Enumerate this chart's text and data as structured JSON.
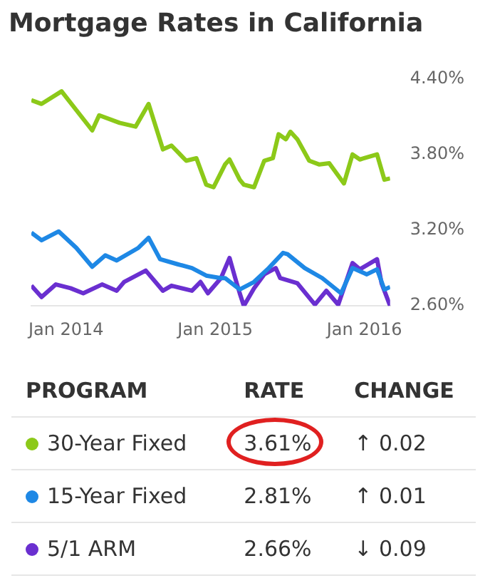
{
  "chart_data": {
    "type": "line",
    "title": "Mortgage Rates in California",
    "xlim": [
      "2013-10-08",
      "2016-03-04"
    ],
    "ylim": [
      2.6,
      4.4
    ],
    "xticks": [
      {
        "value": "2014-01-01",
        "label": "Jan 2014"
      },
      {
        "value": "2015-01-01",
        "label": "Jan 2015"
      },
      {
        "value": "2016-01-01",
        "label": "Jan 2016"
      }
    ],
    "yticks": [
      {
        "value": 2.6,
        "label": "2.60%"
      },
      {
        "value": 3.2,
        "label": "3.20%"
      },
      {
        "value": 3.8,
        "label": "3.80%"
      },
      {
        "value": 4.4,
        "label": "4.40%"
      }
    ],
    "grid": false,
    "legend": "bottom",
    "marker": "none",
    "line_style": "solid",
    "series": [
      {
        "name": "30-Year Fixed",
        "color": "#8cc919",
        "x": [
          "2013-10-08",
          "2013-11-02",
          "2013-12-21",
          "2014-03-06",
          "2014-03-23",
          "2014-05-12",
          "2014-06-20",
          "2014-07-22",
          "2014-08-26",
          "2014-09-16",
          "2014-10-22",
          "2014-11-16",
          "2014-12-10",
          "2014-12-28",
          "2015-01-25",
          "2015-02-05",
          "2015-03-02",
          "2015-03-12",
          "2015-04-06",
          "2015-05-01",
          "2015-05-22",
          "2015-06-05",
          "2015-06-23",
          "2015-07-04",
          "2015-07-21",
          "2015-08-19",
          "2015-09-13",
          "2015-10-07",
          "2015-11-12",
          "2015-12-03",
          "2015-12-21",
          "2016-02-01",
          "2016-02-19",
          "2016-03-04"
        ],
        "values": [
          4.23,
          4.2,
          4.3,
          3.99,
          4.11,
          4.05,
          4.02,
          4.2,
          3.84,
          3.87,
          3.75,
          3.77,
          3.56,
          3.54,
          3.72,
          3.76,
          3.6,
          3.56,
          3.54,
          3.75,
          3.77,
          3.96,
          3.92,
          3.98,
          3.92,
          3.75,
          3.72,
          3.73,
          3.57,
          3.8,
          3.76,
          3.8,
          3.6,
          3.61
        ]
      },
      {
        "name": "15-Year Fixed",
        "color": "#1e88e5",
        "x": [
          "2013-10-08",
          "2013-11-02",
          "2013-12-14",
          "2014-01-26",
          "2014-03-06",
          "2014-04-07",
          "2014-05-05",
          "2014-06-27",
          "2014-07-22",
          "2014-08-19",
          "2014-10-01",
          "2014-11-05",
          "2014-12-10",
          "2015-01-15",
          "2015-01-25",
          "2015-03-02",
          "2015-04-06",
          "2015-05-12",
          "2015-06-16",
          "2015-06-27",
          "2015-08-08",
          "2015-09-20",
          "2015-11-05",
          "2015-12-03",
          "2016-01-07",
          "2016-02-01",
          "2016-02-19",
          "2016-03-04"
        ],
        "values": [
          3.18,
          3.12,
          3.19,
          3.06,
          2.91,
          3.0,
          2.96,
          3.06,
          3.14,
          2.97,
          2.93,
          2.9,
          2.84,
          2.82,
          2.82,
          2.73,
          2.79,
          2.9,
          3.02,
          3.01,
          2.9,
          2.82,
          2.7,
          2.9,
          2.85,
          2.89,
          2.73,
          2.75
        ]
      },
      {
        "name": "5/1 ARM",
        "color": "#6a2fd0",
        "x": [
          "2013-10-08",
          "2013-11-02",
          "2013-12-07",
          "2014-01-12",
          "2014-02-12",
          "2014-03-30",
          "2014-05-05",
          "2014-05-23",
          "2014-07-15",
          "2014-08-26",
          "2014-09-16",
          "2014-11-05",
          "2014-11-26",
          "2014-12-14",
          "2015-01-15",
          "2015-02-05",
          "2015-02-19",
          "2015-03-02",
          "2015-03-12",
          "2015-04-06",
          "2015-05-01",
          "2015-05-29",
          "2015-06-09",
          "2015-07-21",
          "2015-09-02",
          "2015-09-30",
          "2015-10-29",
          "2015-12-03",
          "2015-12-21",
          "2016-02-01",
          "2016-02-12",
          "2016-03-04"
        ],
        "values": [
          2.76,
          2.67,
          2.77,
          2.74,
          2.7,
          2.77,
          2.72,
          2.79,
          2.88,
          2.72,
          2.76,
          2.72,
          2.79,
          2.7,
          2.82,
          2.98,
          2.82,
          2.7,
          2.6,
          2.74,
          2.85,
          2.9,
          2.82,
          2.78,
          2.61,
          2.72,
          2.61,
          2.94,
          2.89,
          2.97,
          2.78,
          2.6
        ]
      }
    ],
    "annotations": [
      "PROGRAM",
      "RATE",
      "CHANGE",
      "3.61%",
      "↑ 0.02",
      "2.81%",
      "↑ 0.01",
      "2.66%",
      "↓ 0.09"
    ]
  }
}
